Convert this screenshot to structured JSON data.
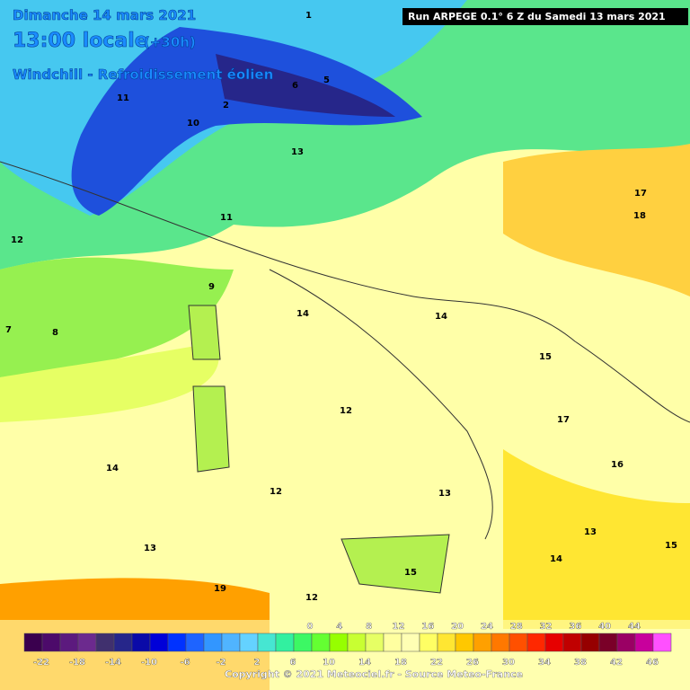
{
  "header": {
    "date": "Dimanche 14 mars 2021",
    "time": "13:00 locale",
    "lead": "(+30h)",
    "subtitle": "Windchill - Refroidissement éolien",
    "run": "Run ARPEGE 0.1° 6 Z du Samedi 13 mars 2021"
  },
  "map_labels": [
    "11",
    "12",
    "9",
    "7",
    "8",
    "13",
    "10",
    "14",
    "12",
    "12",
    "13",
    "14",
    "15",
    "17",
    "18",
    "16",
    "13",
    "15",
    "14",
    "12",
    "6",
    "5",
    "2",
    "1",
    "11",
    "17",
    "19",
    "15",
    "14",
    "13"
  ],
  "colorbar": {
    "top_labels": [
      "0",
      "4",
      "8",
      "12",
      "16",
      "20",
      "24",
      "28",
      "32",
      "36",
      "40",
      "44"
    ],
    "bottom_labels": [
      "-22",
      "-18",
      "-14",
      "-10",
      "-6",
      "-2",
      "2",
      "6",
      "10",
      "14",
      "18",
      "22",
      "26",
      "30",
      "34",
      "38",
      "42",
      "46"
    ],
    "colors": [
      "#3a004e",
      "#4c0a6a",
      "#5c1a7e",
      "#6c2a8e",
      "#40306e",
      "#26268a",
      "#0a0aa8",
      "#0000d8",
      "#0032ff",
      "#1e64ff",
      "#3296ff",
      "#50b4ff",
      "#64d2ff",
      "#46e6d2",
      "#32f0a0",
      "#3cf864",
      "#64ff32",
      "#96ff00",
      "#c8ff32",
      "#e6ff64",
      "#ffffa0",
      "#ffffb4",
      "#ffff64",
      "#ffe632",
      "#ffc800",
      "#ffa000",
      "#ff7800",
      "#ff5000",
      "#ff2800",
      "#e60000",
      "#c00000",
      "#960000",
      "#7a0028",
      "#9a0064",
      "#c8009c",
      "#ff50ff"
    ]
  },
  "copyright": "Copyright © 2021 Meteociel.fr - Source Meteo-France"
}
